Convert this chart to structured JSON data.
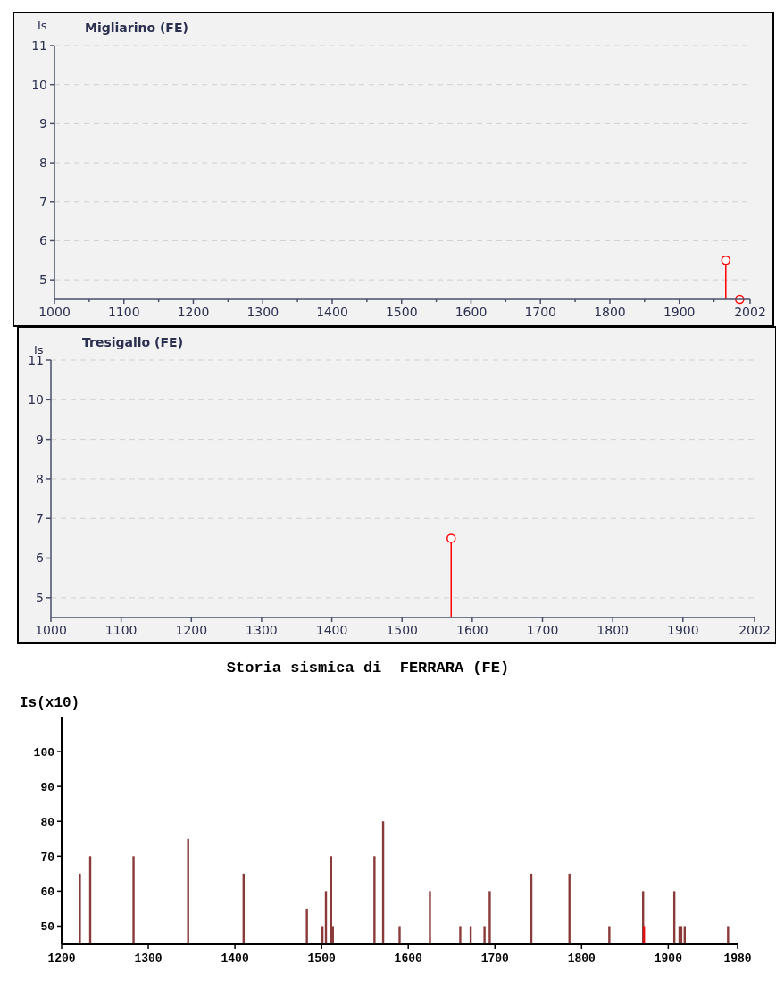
{
  "chart_data": [
    {
      "type": "lollipop",
      "title": "Migliarino (FE)",
      "ylabel": "Is",
      "x": [
        1967,
        1987
      ],
      "values": [
        5.5,
        4.5
      ],
      "color": "#ff0000",
      "marker": "circle",
      "xlim": [
        1000,
        2002
      ],
      "xticks": [
        1000,
        {
          "value": 1050,
          "label": null
        },
        1100,
        {
          "value": 1150,
          "label": null
        },
        1200,
        {
          "value": 1250,
          "label": null
        },
        1300,
        {
          "value": 1350,
          "label": null
        },
        1400,
        {
          "value": 1450,
          "label": null
        },
        1500,
        {
          "value": 1550,
          "label": null
        },
        1600,
        {
          "value": 1650,
          "label": null
        },
        1700,
        {
          "value": 1750,
          "label": null
        },
        1800,
        {
          "value": 1850,
          "label": null
        },
        1900,
        {
          "value": 1950,
          "label": null
        },
        2002
      ],
      "ylim": [
        4.5,
        11
      ],
      "yticks": [
        5,
        6,
        7,
        8,
        9,
        10,
        11
      ],
      "grid": "y"
    },
    {
      "type": "lollipop",
      "title": "Tresigallo (FE)",
      "ylabel": "Is",
      "x": [
        1570
      ],
      "values": [
        6.5
      ],
      "color": "#ff0000",
      "marker": "circle",
      "xlim": [
        1000,
        2002
      ],
      "xticks": [
        1000,
        1100,
        1200,
        1300,
        1400,
        1500,
        1600,
        1700,
        1800,
        1900,
        2002
      ],
      "ylim": [
        4.5,
        11
      ],
      "yticks": [
        5,
        6,
        7,
        8,
        9,
        10,
        11
      ],
      "grid": "y"
    },
    {
      "type": "bar",
      "title": "Storia sismica di  FERRARA (FE)",
      "ylabel": "Is(x10)",
      "x": [
        1221,
        1233,
        1283,
        1346,
        1410,
        1483,
        1501,
        1505,
        1511,
        1513,
        1561,
        1571,
        1590,
        1625,
        1660,
        1672,
        1688,
        1694,
        1742,
        1786,
        1832,
        1871,
        1872,
        1907,
        1913,
        1915,
        1919,
        1969
      ],
      "values": [
        65,
        70,
        70,
        75,
        65,
        55,
        50,
        60,
        70,
        50,
        70,
        80,
        50,
        60,
        50,
        50,
        50,
        60,
        65,
        65,
        50,
        60,
        50,
        60,
        50,
        50,
        50,
        50
      ],
      "colors": [
        "#8b3a3a",
        "#8b3a3a",
        "#8b3a3a",
        "#8b3a3a",
        "#8b3a3a",
        "#8b3a3a",
        "#8b3a3a",
        "#8b3a3a",
        "#8b3a3a",
        "#8b3a3a",
        "#8b3a3a",
        "#8b3a3a",
        "#8b3a3a",
        "#8b3a3a",
        "#8b3a3a",
        "#8b3a3a",
        "#8b3a3a",
        "#8b3a3a",
        "#8b3a3a",
        "#8b3a3a",
        "#8b3a3a",
        "#8b3a3a",
        "#e01010",
        "#8b3a3a",
        "#8b3a3a",
        "#8b3a3a",
        "#8b3a3a",
        "#8b3a3a"
      ],
      "xlim": [
        1200,
        1980
      ],
      "xticks": [
        1200,
        1300,
        1400,
        1500,
        1600,
        1700,
        1800,
        1900,
        1980
      ],
      "ylim": [
        45,
        110
      ],
      "yticks": [
        50,
        60,
        70,
        80,
        90,
        100
      ]
    }
  ]
}
